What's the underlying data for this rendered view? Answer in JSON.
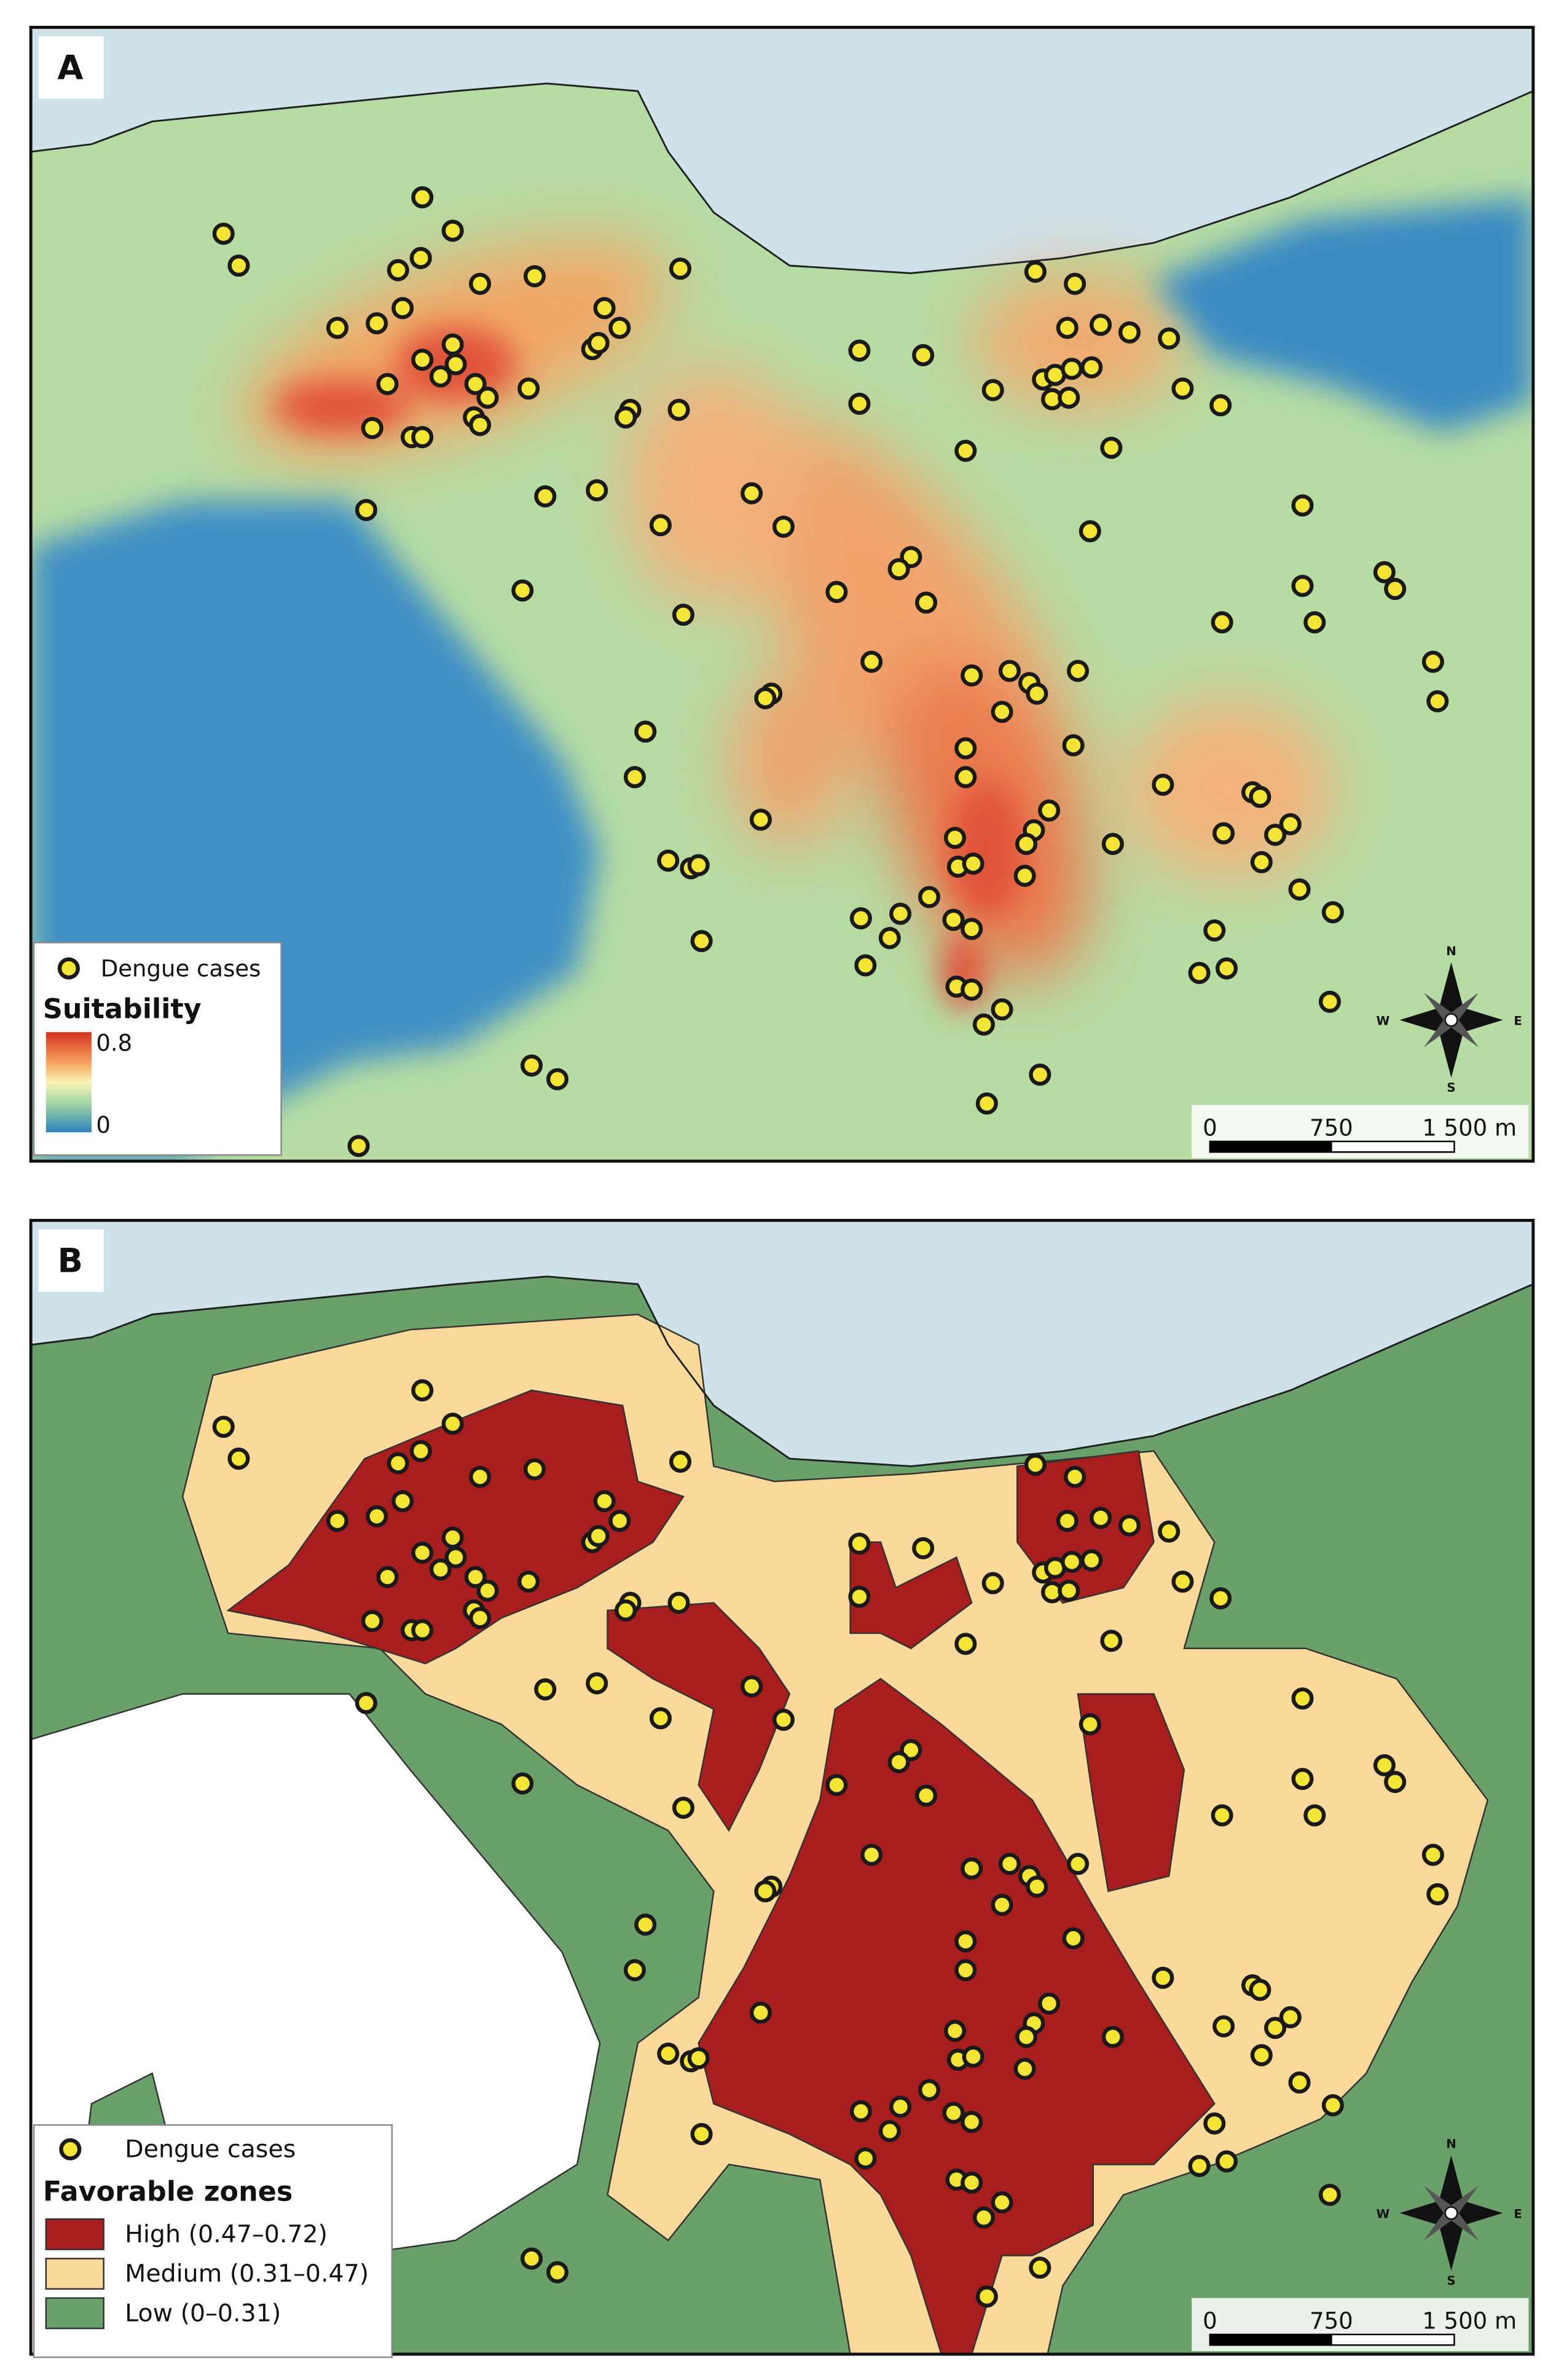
{
  "panel_a": {
    "label": "A",
    "legend": {
      "points": "Dengue cases",
      "title": "Suitability",
      "max": "0.8",
      "min": "0"
    }
  },
  "panel_b": {
    "label": "B",
    "legend": {
      "points": "Dengue cases",
      "title": "Favorable zones",
      "classes": [
        {
          "label": "High (0.47–0.72)",
          "color": "#a81e1e"
        },
        {
          "label": "Medium (0.31–0.47)",
          "color": "#fbd99a"
        },
        {
          "label": "Low (0–0.31)",
          "color": "#6aa06a"
        }
      ]
    }
  },
  "scale_bar": {
    "labels": [
      "0",
      "750",
      "1 500 m"
    ]
  },
  "compass": {
    "n": "N",
    "s": "S",
    "w": "W",
    "e": "E"
  }
}
